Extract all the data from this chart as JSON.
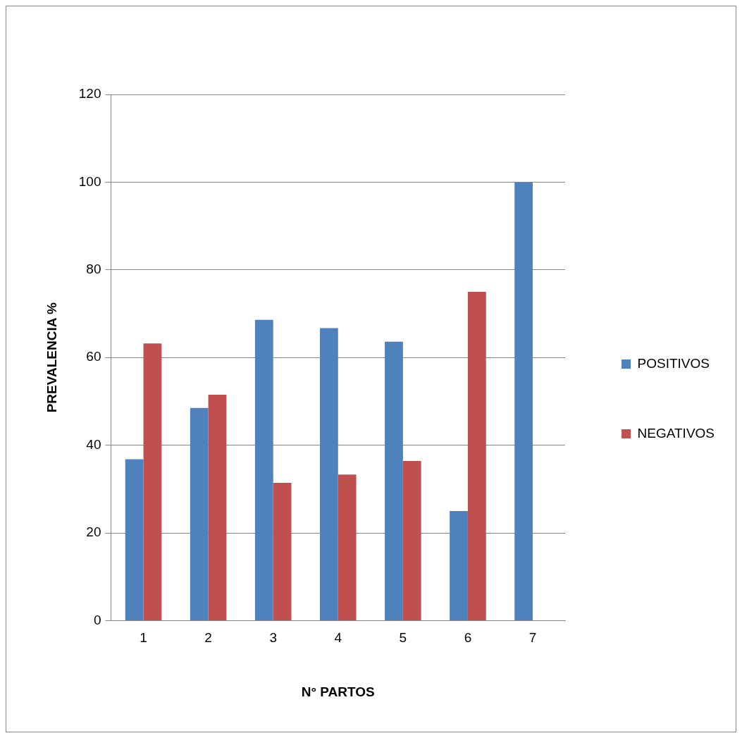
{
  "chart_data": {
    "type": "bar",
    "xlabel": "N° PARTOS",
    "ylabel": "PREVALENCIA %",
    "categories": [
      "1",
      "2",
      "3",
      "4",
      "5",
      "6",
      "7"
    ],
    "series": [
      {
        "name": "POSITIVOS",
        "color": "#4f81bd",
        "values": [
          36.8,
          48.5,
          68.6,
          66.7,
          63.6,
          25,
          100
        ]
      },
      {
        "name": "NEGATIVOS",
        "color": "#c0504d",
        "values": [
          63.2,
          51.5,
          31.4,
          33.3,
          36.4,
          75,
          0
        ]
      }
    ],
    "ylim": [
      0,
      120
    ],
    "yticks": [
      0,
      20,
      40,
      60,
      80,
      100,
      120
    ],
    "grid": "y",
    "legend": "right"
  }
}
